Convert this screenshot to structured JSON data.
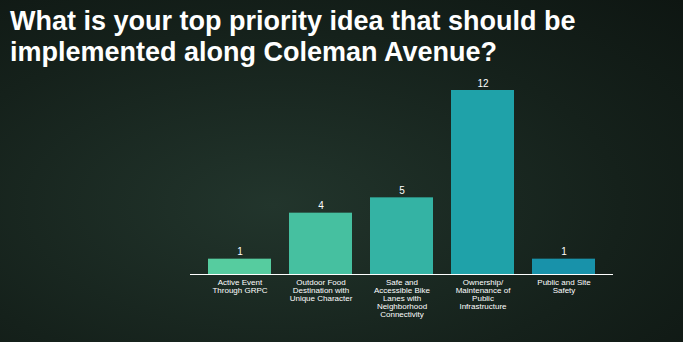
{
  "chart_data": {
    "type": "bar",
    "title": "What is your top priority idea that should be implemented along Coleman Avenue?",
    "categories": [
      "Active Event Through GRPC",
      "Outdoor Food Destination with Unique Character",
      "Safe and Accessible Bike Lanes with Neighborhood Connectivity",
      "Ownership/ Maintenance of Public Infrastructure",
      "Public and Site Safety"
    ],
    "values": [
      1,
      4,
      5,
      12,
      1
    ],
    "colors": [
      "#56cc9f",
      "#46c0a0",
      "#34b3a4",
      "#1fa2a9",
      "#1892aa"
    ],
    "ylim": [
      0,
      12
    ],
    "data_labels": true,
    "tick_labels": "x",
    "grid": false
  }
}
